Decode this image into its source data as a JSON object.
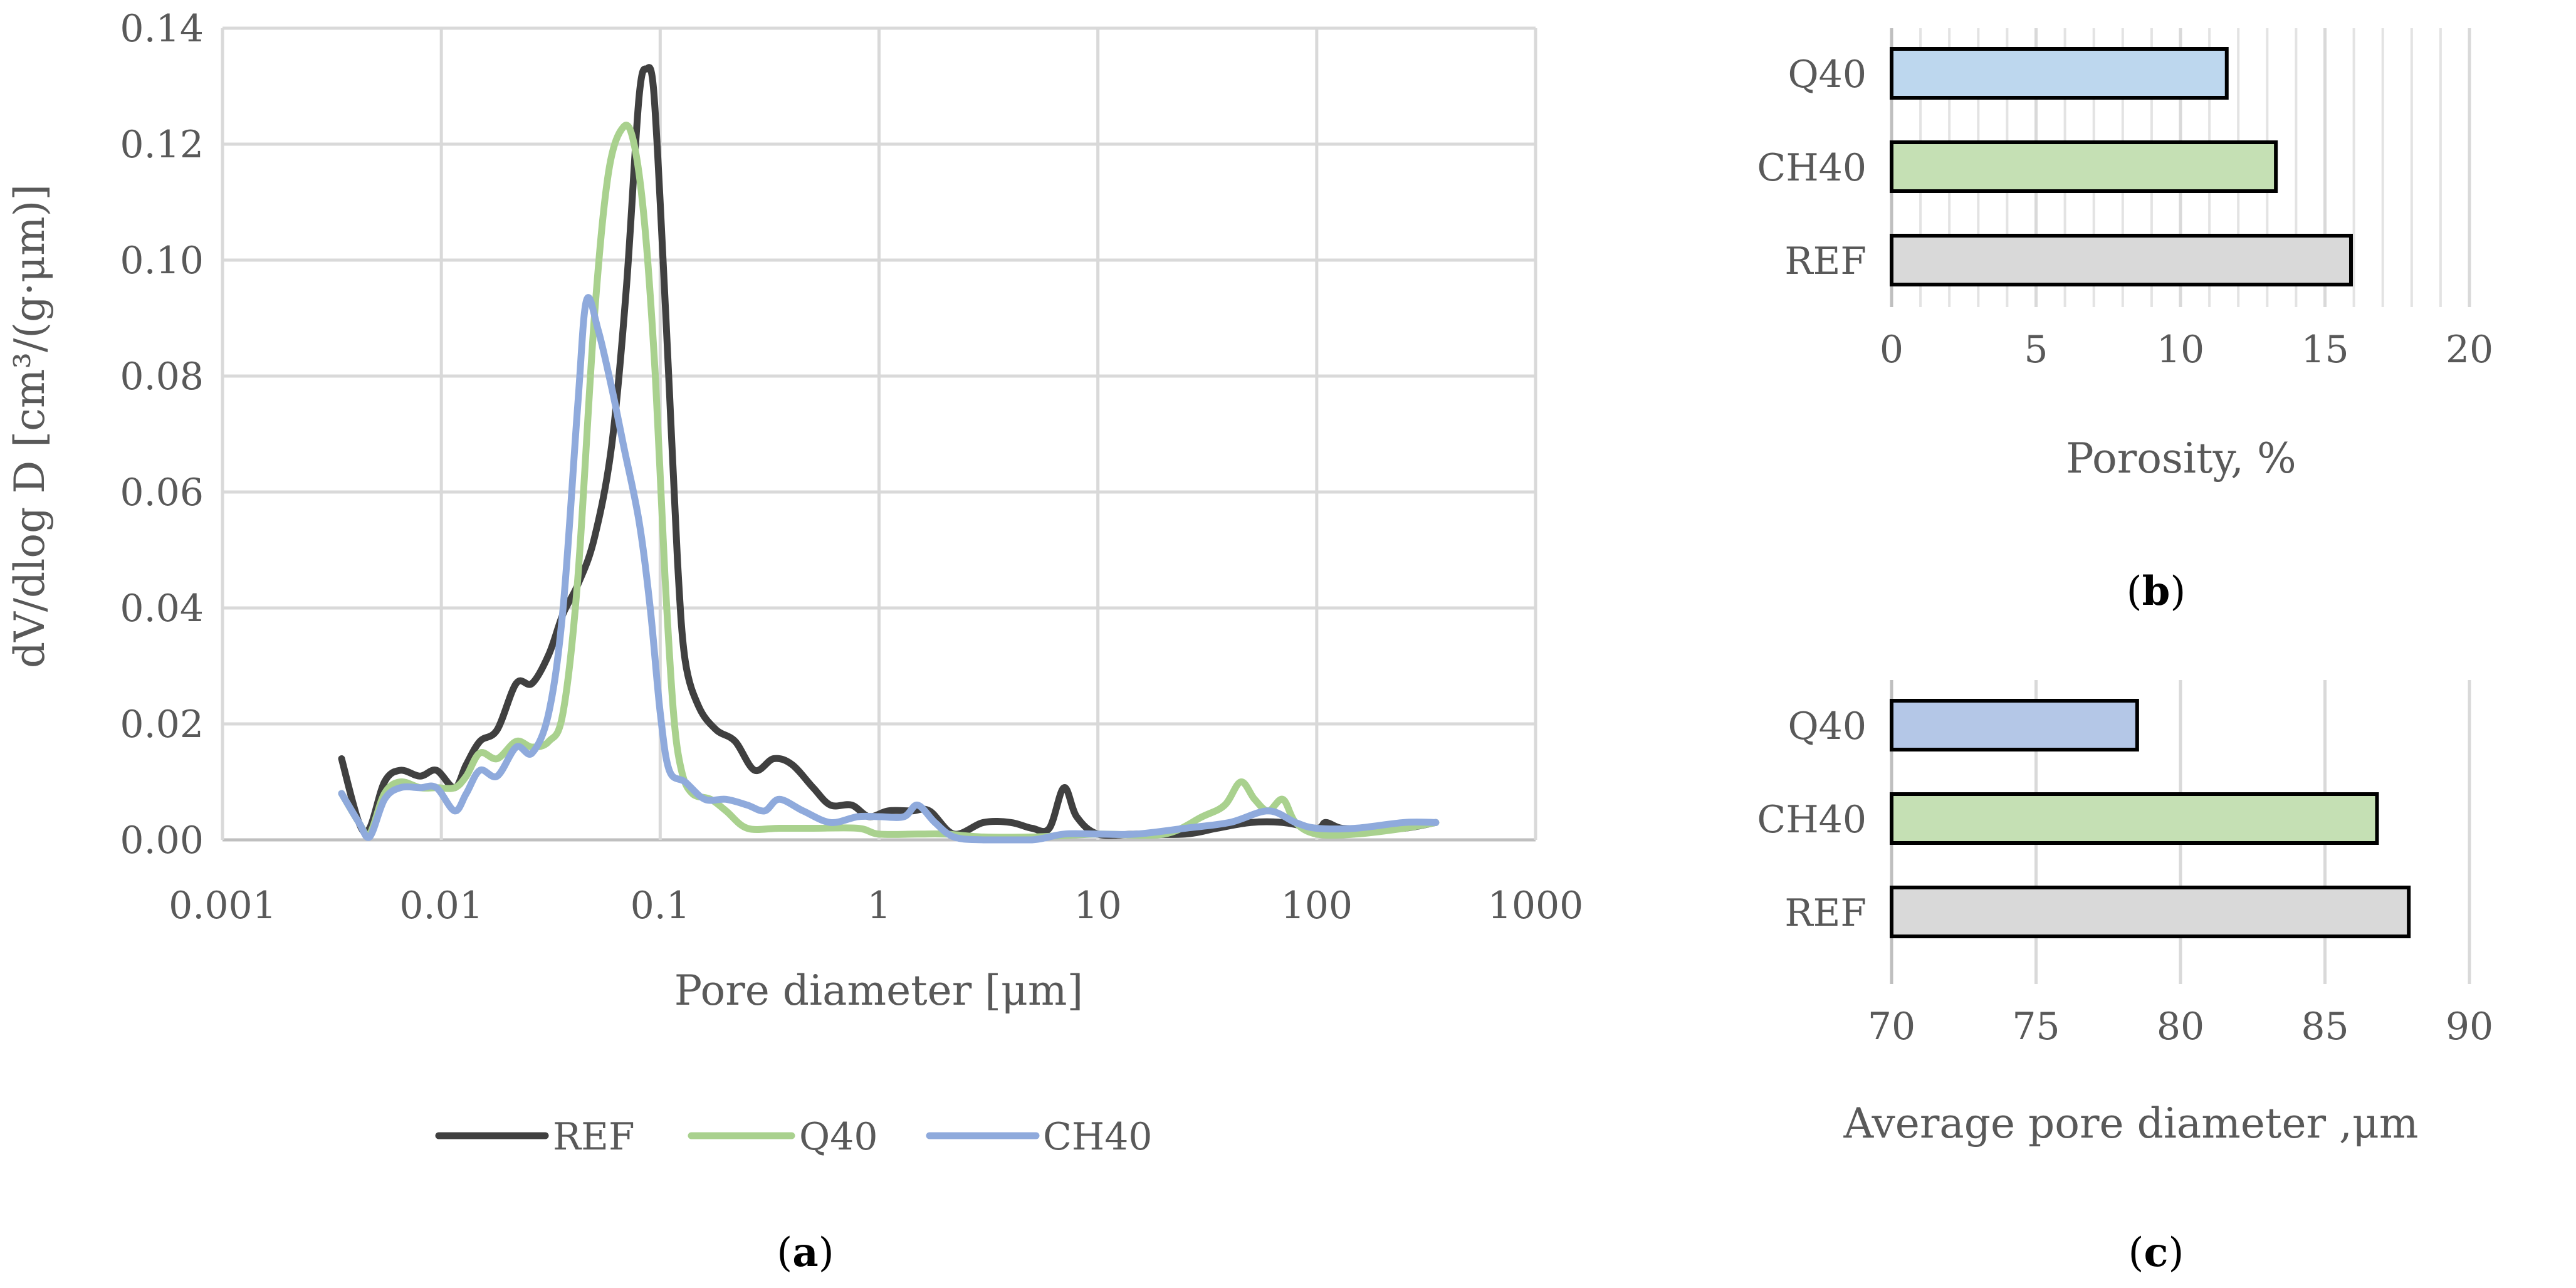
{
  "chart_data": [
    {
      "type": "line",
      "panel_label": "(a)",
      "panel_letter": "a",
      "xlabel": "Pore diameter [μm]",
      "ylabel": "dV/dlog D [cm³/(g·μm)]",
      "x_scale": "log",
      "xlim": [
        0.001,
        1000
      ],
      "ylim": [
        0,
        0.14
      ],
      "x_ticks": [
        "0.001",
        "0.01",
        "0.1",
        "1",
        "10",
        "100",
        "1000"
      ],
      "y_ticks": [
        "0.00",
        "0.02",
        "0.04",
        "0.06",
        "0.08",
        "0.10",
        "0.12",
        "0.14"
      ],
      "grid": true,
      "legend_position": "bottom",
      "series": [
        {
          "name": "REF",
          "color": "#404040",
          "points": [
            [
              0.0035,
              0.014
            ],
            [
              0.0042,
              0.003
            ],
            [
              0.0047,
              0.002
            ],
            [
              0.0055,
              0.01
            ],
            [
              0.0065,
              0.012
            ],
            [
              0.008,
              0.011
            ],
            [
              0.0095,
              0.012
            ],
            [
              0.0115,
              0.009
            ],
            [
              0.013,
              0.013
            ],
            [
              0.015,
              0.017
            ],
            [
              0.018,
              0.019
            ],
            [
              0.022,
              0.027
            ],
            [
              0.026,
              0.027
            ],
            [
              0.031,
              0.032
            ],
            [
              0.036,
              0.039
            ],
            [
              0.042,
              0.044
            ],
            [
              0.05,
              0.052
            ],
            [
              0.06,
              0.068
            ],
            [
              0.07,
              0.095
            ],
            [
              0.08,
              0.128
            ],
            [
              0.087,
              0.133
            ],
            [
              0.093,
              0.13
            ],
            [
              0.1,
              0.11
            ],
            [
              0.11,
              0.078
            ],
            [
              0.12,
              0.048
            ],
            [
              0.13,
              0.031
            ],
            [
              0.15,
              0.023
            ],
            [
              0.18,
              0.019
            ],
            [
              0.22,
              0.017
            ],
            [
              0.27,
              0.012
            ],
            [
              0.33,
              0.014
            ],
            [
              0.4,
              0.013
            ],
            [
              0.5,
              0.009
            ],
            [
              0.6,
              0.006
            ],
            [
              0.75,
              0.006
            ],
            [
              0.9,
              0.004
            ],
            [
              1.1,
              0.005
            ],
            [
              1.4,
              0.005
            ],
            [
              1.7,
              0.005
            ],
            [
              2.2,
              0.001
            ],
            [
              3,
              0.003
            ],
            [
              4,
              0.003
            ],
            [
              5,
              0.002
            ],
            [
              6,
              0.002
            ],
            [
              7,
              0.009
            ],
            [
              8,
              0.004
            ],
            [
              10,
              0.001
            ],
            [
              15,
              0.001
            ],
            [
              25,
              0.001
            ],
            [
              35,
              0.002
            ],
            [
              50,
              0.003
            ],
            [
              70,
              0.003
            ],
            [
              100,
              0.002
            ],
            [
              110,
              0.003
            ],
            [
              130,
              0.002
            ],
            [
              170,
              0.002
            ],
            [
              250,
              0.002
            ],
            [
              350,
              0.003
            ]
          ]
        },
        {
          "name": "Q40",
          "color": "#a9d18e",
          "points": [
            [
              0.0035,
              0.008
            ],
            [
              0.0042,
              0.003
            ],
            [
              0.0047,
              0.001
            ],
            [
              0.0055,
              0.008
            ],
            [
              0.0065,
              0.01
            ],
            [
              0.008,
              0.009
            ],
            [
              0.0095,
              0.009
            ],
            [
              0.0115,
              0.009
            ],
            [
              0.013,
              0.011
            ],
            [
              0.015,
              0.015
            ],
            [
              0.018,
              0.014
            ],
            [
              0.022,
              0.017
            ],
            [
              0.026,
              0.016
            ],
            [
              0.031,
              0.017
            ],
            [
              0.036,
              0.022
            ],
            [
              0.042,
              0.045
            ],
            [
              0.05,
              0.09
            ],
            [
              0.058,
              0.115
            ],
            [
              0.068,
              0.123
            ],
            [
              0.076,
              0.12
            ],
            [
              0.085,
              0.106
            ],
            [
              0.095,
              0.08
            ],
            [
              0.105,
              0.046
            ],
            [
              0.115,
              0.022
            ],
            [
              0.125,
              0.012
            ],
            [
              0.14,
              0.008
            ],
            [
              0.17,
              0.007
            ],
            [
              0.2,
              0.005
            ],
            [
              0.25,
              0.002
            ],
            [
              0.35,
              0.002
            ],
            [
              0.5,
              0.002
            ],
            [
              0.8,
              0.002
            ],
            [
              1,
              0.001
            ],
            [
              1.5,
              0.001
            ],
            [
              2,
              0.001
            ],
            [
              3,
              0.0005
            ],
            [
              5,
              0.0005
            ],
            [
              10,
              0.001
            ],
            [
              20,
              0.001
            ],
            [
              30,
              0.004
            ],
            [
              38,
              0.006
            ],
            [
              45,
              0.01
            ],
            [
              52,
              0.007
            ],
            [
              60,
              0.005
            ],
            [
              70,
              0.007
            ],
            [
              80,
              0.003
            ],
            [
              100,
              0.001
            ],
            [
              150,
              0.001
            ],
            [
              250,
              0.002
            ],
            [
              350,
              0.003
            ]
          ]
        },
        {
          "name": "CH40",
          "color": "#8faadc",
          "points": [
            [
              0.0035,
              0.008
            ],
            [
              0.0042,
              0.003
            ],
            [
              0.0047,
              0.0005
            ],
            [
              0.0055,
              0.007
            ],
            [
              0.0065,
              0.009
            ],
            [
              0.008,
              0.009
            ],
            [
              0.0095,
              0.009
            ],
            [
              0.0115,
              0.005
            ],
            [
              0.013,
              0.008
            ],
            [
              0.015,
              0.012
            ],
            [
              0.018,
              0.011
            ],
            [
              0.022,
              0.016
            ],
            [
              0.026,
              0.015
            ],
            [
              0.031,
              0.022
            ],
            [
              0.036,
              0.04
            ],
            [
              0.042,
              0.075
            ],
            [
              0.046,
              0.093
            ],
            [
              0.052,
              0.088
            ],
            [
              0.06,
              0.078
            ],
            [
              0.068,
              0.068
            ],
            [
              0.08,
              0.055
            ],
            [
              0.09,
              0.04
            ],
            [
              0.1,
              0.022
            ],
            [
              0.11,
              0.012
            ],
            [
              0.13,
              0.01
            ],
            [
              0.16,
              0.007
            ],
            [
              0.2,
              0.007
            ],
            [
              0.25,
              0.006
            ],
            [
              0.3,
              0.005
            ],
            [
              0.35,
              0.007
            ],
            [
              0.45,
              0.005
            ],
            [
              0.6,
              0.003
            ],
            [
              0.8,
              0.004
            ],
            [
              1,
              0.004
            ],
            [
              1.3,
              0.004
            ],
            [
              1.5,
              0.006
            ],
            [
              1.8,
              0.003
            ],
            [
              2.2,
              0.0005
            ],
            [
              3,
              0.0
            ],
            [
              5,
              0.0
            ],
            [
              7,
              0.001
            ],
            [
              10,
              0.001
            ],
            [
              15,
              0.001
            ],
            [
              25,
              0.002
            ],
            [
              40,
              0.003
            ],
            [
              60,
              0.005
            ],
            [
              80,
              0.003
            ],
            [
              100,
              0.002
            ],
            [
              150,
              0.002
            ],
            [
              250,
              0.003
            ],
            [
              350,
              0.003
            ]
          ]
        }
      ]
    },
    {
      "type": "bar",
      "orientation": "horizontal",
      "panel_label": "(b)",
      "panel_letter": "b",
      "xlabel": "Porosity, %",
      "xlim": [
        0,
        20
      ],
      "x_ticks": [
        "0",
        "5",
        "10",
        "15",
        "20"
      ],
      "categories": [
        "Q40",
        "CH40",
        "REF"
      ],
      "values": [
        11.6,
        13.3,
        15.9
      ],
      "colors": [
        "#bdd7ee",
        "#c5e0b4",
        "#d9d9d9"
      ],
      "grid": true
    },
    {
      "type": "bar",
      "orientation": "horizontal",
      "panel_label": "(c)",
      "panel_letter": "c",
      "xlabel": "Average pore diameter ,μm",
      "xlim": [
        70,
        90
      ],
      "x_ticks": [
        "70",
        "75",
        "80",
        "85",
        "90"
      ],
      "categories": [
        "Q40",
        "CH40",
        "REF"
      ],
      "values": [
        78.5,
        86.8,
        87.9
      ],
      "colors": [
        "#b4c7e7",
        "#c5e0b4",
        "#d9d9d9"
      ],
      "grid": true
    }
  ]
}
